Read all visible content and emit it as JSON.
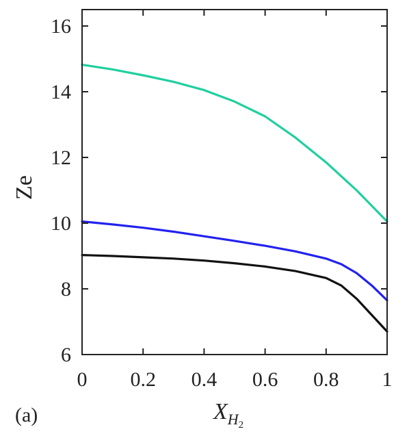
{
  "chart_data": {
    "type": "line",
    "panel_label": "(a)",
    "xlabel": {
      "base": "X",
      "sub1": "H",
      "sub2": "2"
    },
    "ylabel": "Ze",
    "xlim": [
      0,
      1
    ],
    "ylim": [
      6,
      16.5
    ],
    "x_ticks": [
      "0",
      "0.2",
      "0.4",
      "0.6",
      "0.8",
      "1"
    ],
    "x_tick_values": [
      0,
      0.2,
      0.4,
      0.6,
      0.8,
      1
    ],
    "y_ticks": [
      "6",
      "8",
      "10",
      "12",
      "14",
      "16"
    ],
    "y_tick_values": [
      6,
      8,
      10,
      12,
      14,
      16
    ],
    "grid": false,
    "series": [
      {
        "color": "#1fcf9f",
        "x": [
          0,
          0.1,
          0.2,
          0.3,
          0.4,
          0.5,
          0.6,
          0.7,
          0.8,
          0.9,
          1.0
        ],
        "y": [
          14.82,
          14.68,
          14.5,
          14.3,
          14.05,
          13.7,
          13.25,
          12.6,
          11.85,
          11.0,
          10.05
        ]
      },
      {
        "color": "#2222ee",
        "x": [
          0,
          0.1,
          0.2,
          0.3,
          0.4,
          0.5,
          0.6,
          0.7,
          0.8,
          0.85,
          0.9,
          0.95,
          1.0
        ],
        "y": [
          10.05,
          9.96,
          9.86,
          9.74,
          9.6,
          9.46,
          9.31,
          9.14,
          8.92,
          8.75,
          8.48,
          8.1,
          7.65
        ]
      },
      {
        "color": "#111111",
        "x": [
          0,
          0.1,
          0.2,
          0.3,
          0.4,
          0.5,
          0.6,
          0.7,
          0.8,
          0.85,
          0.9,
          0.95,
          1.0
        ],
        "y": [
          9.03,
          9.0,
          8.96,
          8.92,
          8.86,
          8.78,
          8.68,
          8.54,
          8.33,
          8.1,
          7.7,
          7.2,
          6.7
        ]
      }
    ]
  }
}
